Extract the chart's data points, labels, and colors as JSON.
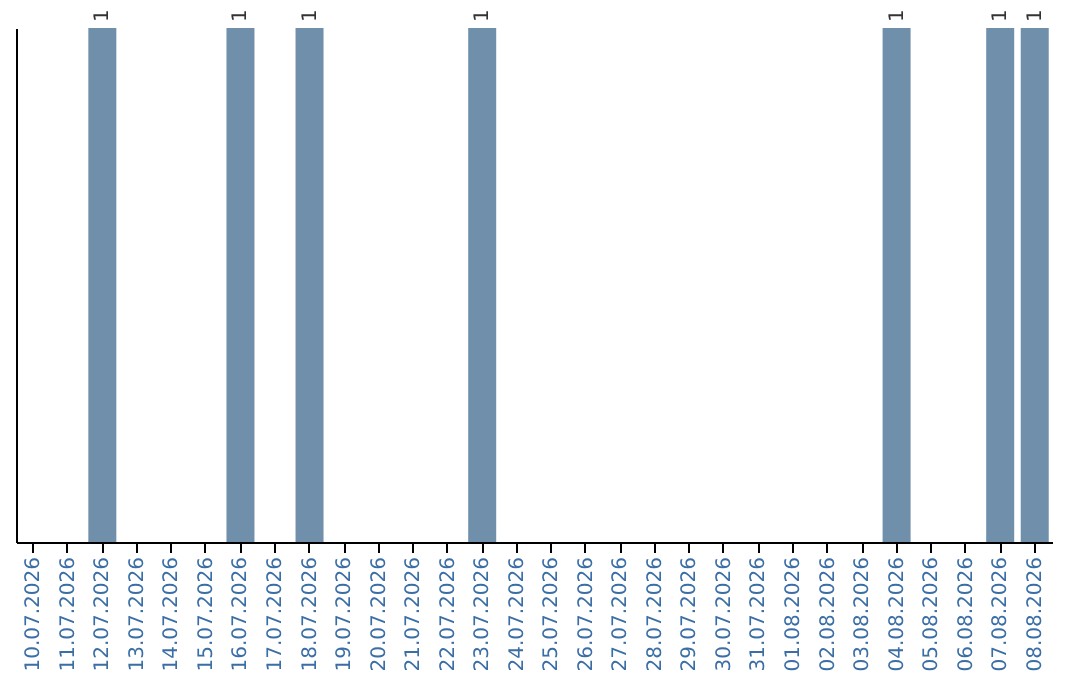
{
  "chart_data": {
    "type": "bar",
    "categories": [
      "10.07.2026",
      "11.07.2026",
      "12.07.2026",
      "13.07.2026",
      "14.07.2026",
      "15.07.2026",
      "16.07.2026",
      "17.07.2026",
      "18.07.2026",
      "19.07.2026",
      "20.07.2026",
      "21.07.2026",
      "22.07.2026",
      "23.07.2026",
      "24.07.2026",
      "25.07.2026",
      "26.07.2026",
      "27.07.2026",
      "28.07.2026",
      "29.07.2026",
      "30.07.2026",
      "31.07.2026",
      "01.08.2026",
      "02.08.2026",
      "03.08.2026",
      "04.08.2026",
      "05.08.2026",
      "06.08.2026",
      "07.08.2026",
      "08.08.2026"
    ],
    "values": [
      0,
      0,
      1,
      0,
      0,
      0,
      1,
      0,
      1,
      0,
      0,
      0,
      0,
      1,
      0,
      0,
      0,
      0,
      0,
      0,
      0,
      0,
      0,
      0,
      0,
      1,
      0,
      0,
      1,
      1
    ],
    "value_labels": [
      null,
      null,
      "1",
      null,
      null,
      null,
      "1",
      null,
      "1",
      null,
      null,
      null,
      null,
      "1",
      null,
      null,
      null,
      null,
      null,
      null,
      null,
      null,
      null,
      null,
      null,
      "1",
      null,
      null,
      "1",
      "1"
    ],
    "color": "#6f8fab",
    "ylim": [
      0,
      1
    ],
    "tick_labels": "x",
    "grid": false
  }
}
